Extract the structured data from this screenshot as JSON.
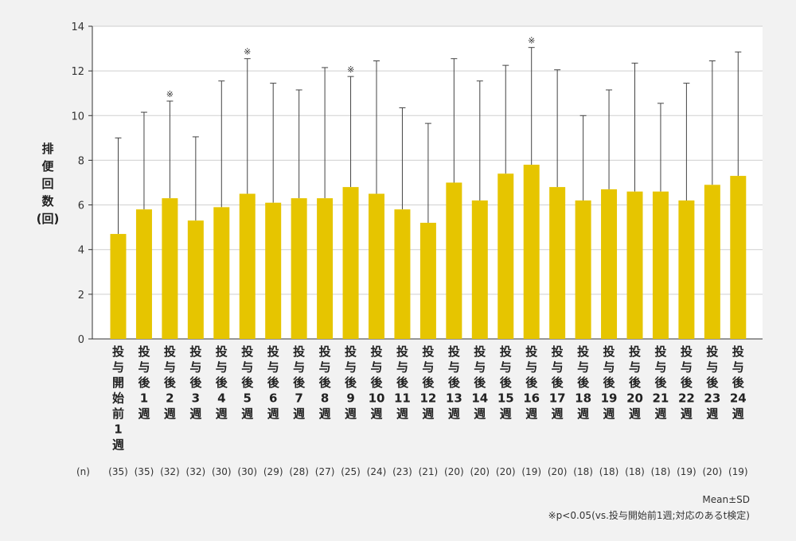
{
  "chart_data": {
    "type": "bar",
    "ylabel": "排便回数(回)",
    "ylim": [
      0,
      14
    ],
    "yticks": [
      "0",
      "2",
      "4",
      "6",
      "8",
      "10",
      "12",
      "14"
    ],
    "grid": true,
    "bar_color": "#e6c500",
    "n_prefix": "(n)",
    "categories": [
      {
        "label": "投与開始前1週",
        "mean": 4.7,
        "sd": 4.3,
        "n": "(35)",
        "sig": ""
      },
      {
        "label": "投与後1週",
        "mean": 5.8,
        "sd": 4.35,
        "n": "(35)",
        "sig": ""
      },
      {
        "label": "投与後2週",
        "mean": 6.3,
        "sd": 4.35,
        "n": "(32)",
        "sig": "※"
      },
      {
        "label": "投与後3週",
        "mean": 5.3,
        "sd": 3.75,
        "n": "(32)",
        "sig": ""
      },
      {
        "label": "投与後4週",
        "mean": 5.9,
        "sd": 5.65,
        "n": "(30)",
        "sig": ""
      },
      {
        "label": "投与後5週",
        "mean": 6.5,
        "sd": 6.05,
        "n": "(30)",
        "sig": "※"
      },
      {
        "label": "投与後6週",
        "mean": 6.1,
        "sd": 5.35,
        "n": "(29)",
        "sig": ""
      },
      {
        "label": "投与後7週",
        "mean": 6.3,
        "sd": 4.85,
        "n": "(28)",
        "sig": ""
      },
      {
        "label": "投与後8週",
        "mean": 6.3,
        "sd": 5.85,
        "n": "(27)",
        "sig": ""
      },
      {
        "label": "投与後9週",
        "mean": 6.8,
        "sd": 4.95,
        "n": "(25)",
        "sig": "※"
      },
      {
        "label": "投与後10週",
        "mean": 6.5,
        "sd": 5.95,
        "n": "(24)",
        "sig": ""
      },
      {
        "label": "投与後11週",
        "mean": 5.8,
        "sd": 4.55,
        "n": "(23)",
        "sig": ""
      },
      {
        "label": "投与後12週",
        "mean": 5.2,
        "sd": 4.45,
        "n": "(21)",
        "sig": ""
      },
      {
        "label": "投与後13週",
        "mean": 7.0,
        "sd": 5.55,
        "n": "(20)",
        "sig": ""
      },
      {
        "label": "投与後14週",
        "mean": 6.2,
        "sd": 5.35,
        "n": "(20)",
        "sig": ""
      },
      {
        "label": "投与後15週",
        "mean": 7.4,
        "sd": 4.85,
        "n": "(20)",
        "sig": ""
      },
      {
        "label": "投与後16週",
        "mean": 7.8,
        "sd": 5.25,
        "n": "(19)",
        "sig": "※"
      },
      {
        "label": "投与後17週",
        "mean": 6.8,
        "sd": 5.25,
        "n": "(20)",
        "sig": ""
      },
      {
        "label": "投与後18週",
        "mean": 6.2,
        "sd": 3.8,
        "n": "(18)",
        "sig": ""
      },
      {
        "label": "投与後19週",
        "mean": 6.7,
        "sd": 4.45,
        "n": "(18)",
        "sig": ""
      },
      {
        "label": "投与後20週",
        "mean": 6.6,
        "sd": 5.75,
        "n": "(18)",
        "sig": ""
      },
      {
        "label": "投与後21週",
        "mean": 6.6,
        "sd": 3.95,
        "n": "(18)",
        "sig": ""
      },
      {
        "label": "投与後22週",
        "mean": 6.2,
        "sd": 5.25,
        "n": "(19)",
        "sig": ""
      },
      {
        "label": "投与後23週",
        "mean": 6.9,
        "sd": 5.55,
        "n": "(20)",
        "sig": ""
      },
      {
        "label": "投与後24週",
        "mean": 7.3,
        "sd": 5.55,
        "n": "(19)",
        "sig": ""
      }
    ],
    "footnote_line1": "Mean±SD",
    "footnote_line2": "※p<0.05(vs.投与開始前1週;対応のあるt検定)"
  }
}
